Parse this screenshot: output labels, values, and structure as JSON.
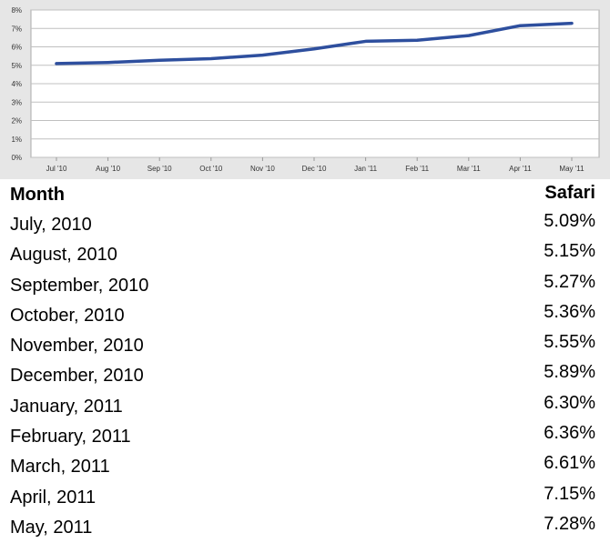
{
  "chart_data": {
    "type": "line",
    "categories": [
      "Jul '10",
      "Aug '10",
      "Sep '10",
      "Oct '10",
      "Nov '10",
      "Dec '10",
      "Jan '11",
      "Feb '11",
      "Mar '11",
      "Apr '11",
      "May '11"
    ],
    "series": [
      {
        "values": [
          5.09,
          5.15,
          5.27,
          5.36,
          5.55,
          5.89,
          6.3,
          6.36,
          6.61,
          7.15,
          7.28
        ]
      }
    ],
    "y_ticks": [
      "0%",
      "1%",
      "2%",
      "3%",
      "4%",
      "5%",
      "6%",
      "7%",
      "8%"
    ],
    "ylim": [
      0,
      8
    ],
    "grid": true,
    "colors": {
      "line": "#2e4f9e",
      "plot_background": "#ffffff",
      "frame_background": "#e6e6e6",
      "grid": "#c0c0c0"
    }
  },
  "table": {
    "headers": {
      "month": "Month",
      "safari": "Safari"
    },
    "rows": [
      {
        "month": "July, 2010",
        "value": "5.09%"
      },
      {
        "month": "August, 2010",
        "value": "5.15%"
      },
      {
        "month": "September, 2010",
        "value": "5.27%"
      },
      {
        "month": "October, 2010",
        "value": "5.36%"
      },
      {
        "month": "November, 2010",
        "value": "5.55%"
      },
      {
        "month": "December, 2010",
        "value": "5.89%"
      },
      {
        "month": "January, 2011",
        "value": "6.30%"
      },
      {
        "month": "February, 2011",
        "value": "6.36%"
      },
      {
        "month": "March, 2011",
        "value": "6.61%"
      },
      {
        "month": "April, 2011",
        "value": "7.15%"
      },
      {
        "month": "May, 2011",
        "value": "7.28%"
      }
    ]
  }
}
